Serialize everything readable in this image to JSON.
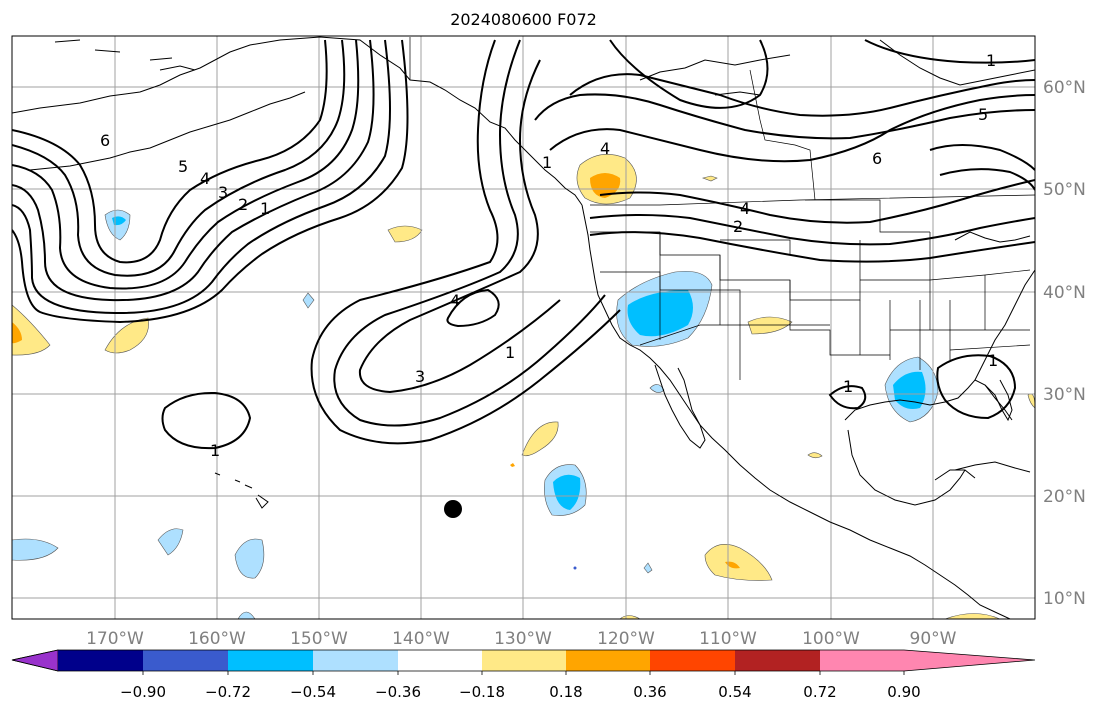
{
  "title": "2024080600 F072",
  "lon_labels": [
    "170°W",
    "160°W",
    "150°W",
    "140°W",
    "130°W",
    "120°W",
    "110°W",
    "100°W",
    "90°W"
  ],
  "lat_labels": [
    "60°N",
    "50°N",
    "40°N",
    "30°N",
    "20°N",
    "10°N"
  ],
  "colorbar": {
    "colors": [
      "#9932cc",
      "#00008b",
      "#3a5bcd",
      "#00bfff",
      "#aee0ff",
      "#ffffff",
      "#ffe987",
      "#ffa500",
      "#ff4500",
      "#b22222",
      "#ff86b0"
    ],
    "tick_labels": [
      "−0.90",
      "−0.72",
      "−0.54",
      "−0.36",
      "−0.18",
      "0.18",
      "0.36",
      "0.54",
      "0.72",
      "0.90"
    ]
  },
  "contour_labels": [
    "6",
    "5",
    "4",
    "3",
    "2",
    "1",
    "4",
    "3",
    "1",
    "4",
    "1",
    "6",
    "5",
    "4",
    "2",
    "1",
    "1",
    "1",
    "1"
  ],
  "colors": {
    "coast": "#000000",
    "grid": "#a0a0a0",
    "contour": "#000000",
    "tick_text": "#808080"
  }
}
